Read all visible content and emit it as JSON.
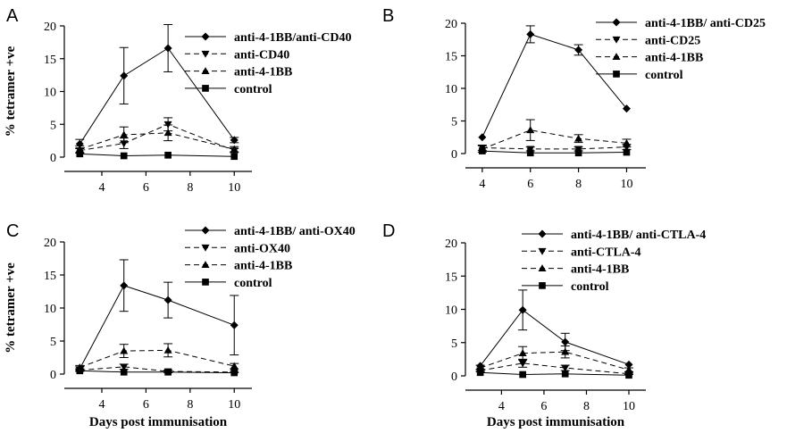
{
  "chart_data": [
    {
      "type": "line",
      "panel_letter": "A",
      "x": [
        3,
        5,
        7,
        10
      ],
      "xticks": [
        4,
        6,
        8,
        10
      ],
      "xlim": [
        2.3,
        10.8
      ],
      "yticks": [
        0,
        5,
        10,
        15,
        20
      ],
      "ylim": [
        0,
        20
      ],
      "ylabel": "% tetramer +ve",
      "xlabel": "",
      "legend_position": "top-right",
      "series": [
        {
          "name": "anti-4-1BB/anti-CD40",
          "marker": "diamond",
          "dash": "solid",
          "values": [
            2.0,
            12.4,
            16.6,
            2.6
          ],
          "error": [
            0.7,
            4.3,
            3.6,
            0.4
          ]
        },
        {
          "name": "anti-CD40",
          "marker": "triangle-down",
          "dash": "dashed",
          "values": [
            1.0,
            2.1,
            5.0,
            1.0
          ],
          "error": [
            0.4,
            0.8,
            1.0,
            0.3
          ]
        },
        {
          "name": "anti-4-1BB",
          "marker": "triangle-up",
          "dash": "dashed",
          "values": [
            1.2,
            3.4,
            3.7,
            1.2
          ],
          "error": [
            0.5,
            1.2,
            1.2,
            0.4
          ]
        },
        {
          "name": "control",
          "marker": "square",
          "dash": "solid",
          "values": [
            0.5,
            0.2,
            0.3,
            0.1
          ],
          "error": [
            0,
            0,
            0,
            0
          ]
        }
      ]
    },
    {
      "type": "line",
      "panel_letter": "B",
      "x": [
        4,
        6,
        8,
        10
      ],
      "xticks": [
        4,
        6,
        8,
        10
      ],
      "xlim": [
        3.3,
        10.8
      ],
      "yticks": [
        0,
        5,
        10,
        15,
        20
      ],
      "ylim": [
        0,
        20
      ],
      "ylabel": "",
      "xlabel": "",
      "legend_position": "top-right",
      "series": [
        {
          "name": "anti-4-1BB/ anti-CD25",
          "marker": "diamond",
          "dash": "solid",
          "values": [
            2.5,
            18.3,
            15.9,
            6.9
          ],
          "error": [
            0,
            1.3,
            0.8,
            0
          ]
        },
        {
          "name": "anti-CD25",
          "marker": "triangle-down",
          "dash": "dashed",
          "values": [
            0.9,
            0.7,
            0.7,
            1.0
          ],
          "error": [
            0.4,
            0.3,
            0.3,
            0.4
          ]
        },
        {
          "name": "anti-4-1BB",
          "marker": "triangle-up",
          "dash": "dashed",
          "values": [
            0.7,
            3.6,
            2.3,
            1.6
          ],
          "error": [
            0.5,
            1.6,
            0.6,
            0.6
          ]
        },
        {
          "name": "control",
          "marker": "square",
          "dash": "solid",
          "values": [
            0.4,
            0.1,
            0.1,
            0.2
          ],
          "error": [
            0,
            0,
            0,
            0
          ]
        }
      ]
    },
    {
      "type": "line",
      "panel_letter": "C",
      "x": [
        3,
        5,
        7,
        10
      ],
      "xticks": [
        4,
        6,
        8,
        10
      ],
      "xlim": [
        2.3,
        10.8
      ],
      "yticks": [
        0,
        5,
        10,
        15,
        20
      ],
      "ylim": [
        0,
        20
      ],
      "ylabel": "% tetramer +ve",
      "xlabel": "Days post immunisation",
      "legend_position": "top-right",
      "series": [
        {
          "name": "anti-4-1BB/ anti-OX40",
          "marker": "diamond",
          "dash": "solid",
          "values": [
            0.8,
            13.4,
            11.2,
            7.4
          ],
          "error": [
            0.3,
            3.9,
            2.7,
            4.5
          ]
        },
        {
          "name": "anti-OX40",
          "marker": "triangle-down",
          "dash": "dashed",
          "values": [
            0.6,
            1.1,
            0.4,
            0.3
          ],
          "error": [
            0.2,
            0.4,
            0.2,
            0.1
          ]
        },
        {
          "name": "anti-4-1BB",
          "marker": "triangle-up",
          "dash": "dashed",
          "values": [
            1.0,
            3.5,
            3.6,
            1.2
          ],
          "error": [
            0.3,
            1.0,
            1.0,
            0.4
          ]
        },
        {
          "name": "control",
          "marker": "square",
          "dash": "solid",
          "values": [
            0.5,
            0.3,
            0.3,
            0.2
          ],
          "error": [
            0,
            0,
            0,
            0
          ]
        }
      ]
    },
    {
      "type": "line",
      "panel_letter": "D",
      "x": [
        3,
        5,
        7,
        10
      ],
      "xticks": [
        4,
        6,
        8,
        10
      ],
      "xlim": [
        2.3,
        10.8
      ],
      "yticks": [
        0,
        5,
        10,
        15,
        20
      ],
      "ylim": [
        0,
        20
      ],
      "ylabel": "",
      "xlabel": "Days post immunisation",
      "legend_position": "top-right",
      "series": [
        {
          "name": "anti-4-1BB/ anti-CTLA-4",
          "marker": "diamond",
          "dash": "solid",
          "values": [
            1.5,
            9.9,
            5.1,
            1.7
          ],
          "error": [
            0,
            3.0,
            1.3,
            0
          ]
        },
        {
          "name": "anti-CTLA-4",
          "marker": "triangle-down",
          "dash": "dashed",
          "values": [
            0.8,
            1.9,
            1.2,
            0.3
          ],
          "error": [
            0.2,
            0.6,
            0.4,
            0.1
          ]
        },
        {
          "name": "anti-4-1BB",
          "marker": "triangle-up",
          "dash": "dashed",
          "values": [
            1.2,
            3.4,
            3.6,
            0.9
          ],
          "error": [
            0.4,
            1.0,
            0.9,
            0.3
          ]
        },
        {
          "name": "control",
          "marker": "square",
          "dash": "solid",
          "values": [
            0.5,
            0.2,
            0.3,
            0.1
          ],
          "error": [
            0,
            0,
            0,
            0
          ]
        }
      ]
    }
  ]
}
